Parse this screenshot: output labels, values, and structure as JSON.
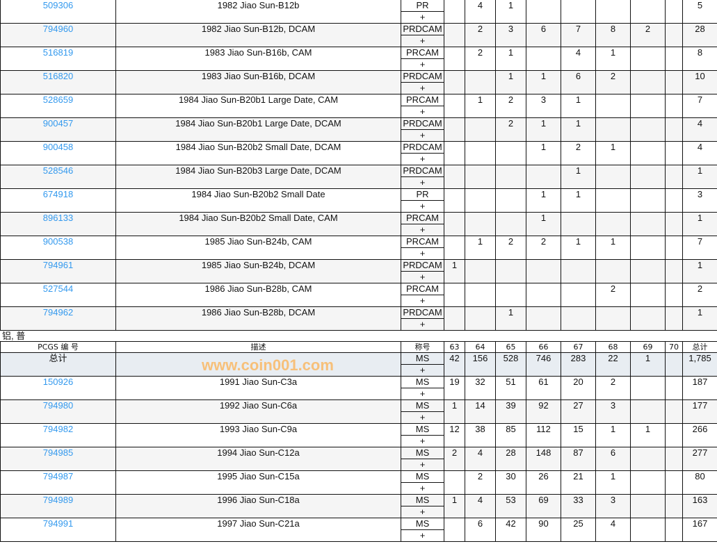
{
  "grades": [
    "63",
    "64",
    "65",
    "66",
    "67",
    "68",
    "69",
    "70"
  ],
  "proof_rows": [
    {
      "id": "509306",
      "desc": "1982 Jiao Sun-B12b",
      "des": "PR",
      "v": [
        "",
        "4",
        "1",
        "",
        "",
        "",
        "",
        ""
      ],
      "total": "5"
    },
    {
      "id": "794960",
      "desc": "1982 Jiao Sun-B12b, DCAM",
      "des": "PRDCAM",
      "v": [
        "",
        "2",
        "3",
        "6",
        "7",
        "8",
        "2",
        ""
      ],
      "total": "28"
    },
    {
      "id": "516819",
      "desc": "1983 Jiao Sun-B16b, CAM",
      "des": "PRCAM",
      "v": [
        "",
        "2",
        "1",
        "",
        "4",
        "1",
        "",
        ""
      ],
      "total": "8"
    },
    {
      "id": "516820",
      "desc": "1983 Jiao Sun-B16b, DCAM",
      "des": "PRDCAM",
      "v": [
        "",
        "",
        "1",
        "1",
        "6",
        "2",
        "",
        ""
      ],
      "total": "10"
    },
    {
      "id": "528659",
      "desc": "1984 Jiao Sun-B20b1 Large Date, CAM",
      "des": "PRCAM",
      "v": [
        "",
        "1",
        "2",
        "3",
        "1",
        "",
        "",
        ""
      ],
      "total": "7"
    },
    {
      "id": "900457",
      "desc": "1984 Jiao Sun-B20b1 Large Date, DCAM",
      "des": "PRDCAM",
      "v": [
        "",
        "",
        "2",
        "1",
        "1",
        "",
        "",
        ""
      ],
      "total": "4"
    },
    {
      "id": "900458",
      "desc": "1984 Jiao Sun-B20b2 Small Date, DCAM",
      "des": "PRDCAM",
      "v": [
        "",
        "",
        "",
        "1",
        "2",
        "1",
        "",
        ""
      ],
      "total": "4"
    },
    {
      "id": "528546",
      "desc": "1984 Jiao Sun-B20b3 Large Date, DCAM",
      "des": "PRDCAM",
      "v": [
        "",
        "",
        "",
        "",
        "1",
        "",
        "",
        ""
      ],
      "total": "1"
    },
    {
      "id": "674918",
      "desc": "1984 Jiao Sun-B20b2 Small Date",
      "des": "PR",
      "v": [
        "",
        "",
        "",
        "1",
        "1",
        "",
        "",
        ""
      ],
      "total": "3"
    },
    {
      "id": "896133",
      "desc": "1984 Jiao Sun-B20b2 Small Date, CAM",
      "des": "PRCAM",
      "v": [
        "",
        "",
        "",
        "1",
        "",
        "",
        "",
        ""
      ],
      "total": "1"
    },
    {
      "id": "900538",
      "desc": "1985 Jiao Sun-B24b, CAM",
      "des": "PRCAM",
      "v": [
        "",
        "1",
        "2",
        "2",
        "1",
        "1",
        "",
        ""
      ],
      "total": "7"
    },
    {
      "id": "794961",
      "desc": "1985 Jiao Sun-B24b, DCAM",
      "des": "PRDCAM",
      "v": [
        "1",
        "",
        "",
        "",
        "",
        "",
        "",
        ""
      ],
      "total": "1"
    },
    {
      "id": "527544",
      "desc": "1986 Jiao Sun-B28b, CAM",
      "des": "PRCAM",
      "v": [
        "",
        "",
        "",
        "",
        "",
        "2",
        "",
        ""
      ],
      "total": "2"
    },
    {
      "id": "794962",
      "desc": "1986 Jiao Sun-B28b, DCAM",
      "des": "PRDCAM",
      "v": [
        "",
        "",
        "1",
        "",
        "",
        "",
        "",
        ""
      ],
      "total": "1"
    }
  ],
  "plus": "+",
  "section_label": "铝, 普",
  "header": {
    "pcgs": "PCGS 编 号",
    "desc": "描述",
    "des": "称号",
    "total": "总计"
  },
  "summary": {
    "label": "总计",
    "des": "MS",
    "v": [
      "42",
      "156",
      "528",
      "746",
      "283",
      "22",
      "1",
      ""
    ],
    "total": "1,785"
  },
  "ms_rows": [
    {
      "id": "150926",
      "desc": "1991 Jiao Sun-C3a",
      "des": "MS",
      "v": [
        "19",
        "32",
        "51",
        "61",
        "20",
        "2",
        "",
        ""
      ],
      "total": "187"
    },
    {
      "id": "794980",
      "desc": "1992 Jiao Sun-C6a",
      "des": "MS",
      "v": [
        "1",
        "14",
        "39",
        "92",
        "27",
        "3",
        "",
        ""
      ],
      "total": "177"
    },
    {
      "id": "794982",
      "desc": "1993 Jiao Sun-C9a",
      "des": "MS",
      "v": [
        "12",
        "38",
        "85",
        "112",
        "15",
        "1",
        "1",
        ""
      ],
      "total": "266"
    },
    {
      "id": "794985",
      "desc": "1994 Jiao Sun-C12a",
      "des": "MS",
      "v": [
        "2",
        "4",
        "28",
        "148",
        "87",
        "6",
        "",
        ""
      ],
      "total": "277"
    },
    {
      "id": "794987",
      "desc": "1995 Jiao Sun-C15a",
      "des": "MS",
      "v": [
        "",
        "2",
        "30",
        "26",
        "21",
        "1",
        "",
        ""
      ],
      "total": "80"
    },
    {
      "id": "794989",
      "desc": "1996 Jiao Sun-C18a",
      "des": "MS",
      "v": [
        "1",
        "4",
        "53",
        "69",
        "33",
        "3",
        "",
        ""
      ],
      "total": "163"
    },
    {
      "id": "794991",
      "desc": "1997 Jiao Sun-C21a",
      "des": "MS",
      "v": [
        "",
        "6",
        "42",
        "90",
        "25",
        "4",
        "",
        ""
      ],
      "total": "167"
    }
  ],
  "watermark": "www.coin001.com"
}
